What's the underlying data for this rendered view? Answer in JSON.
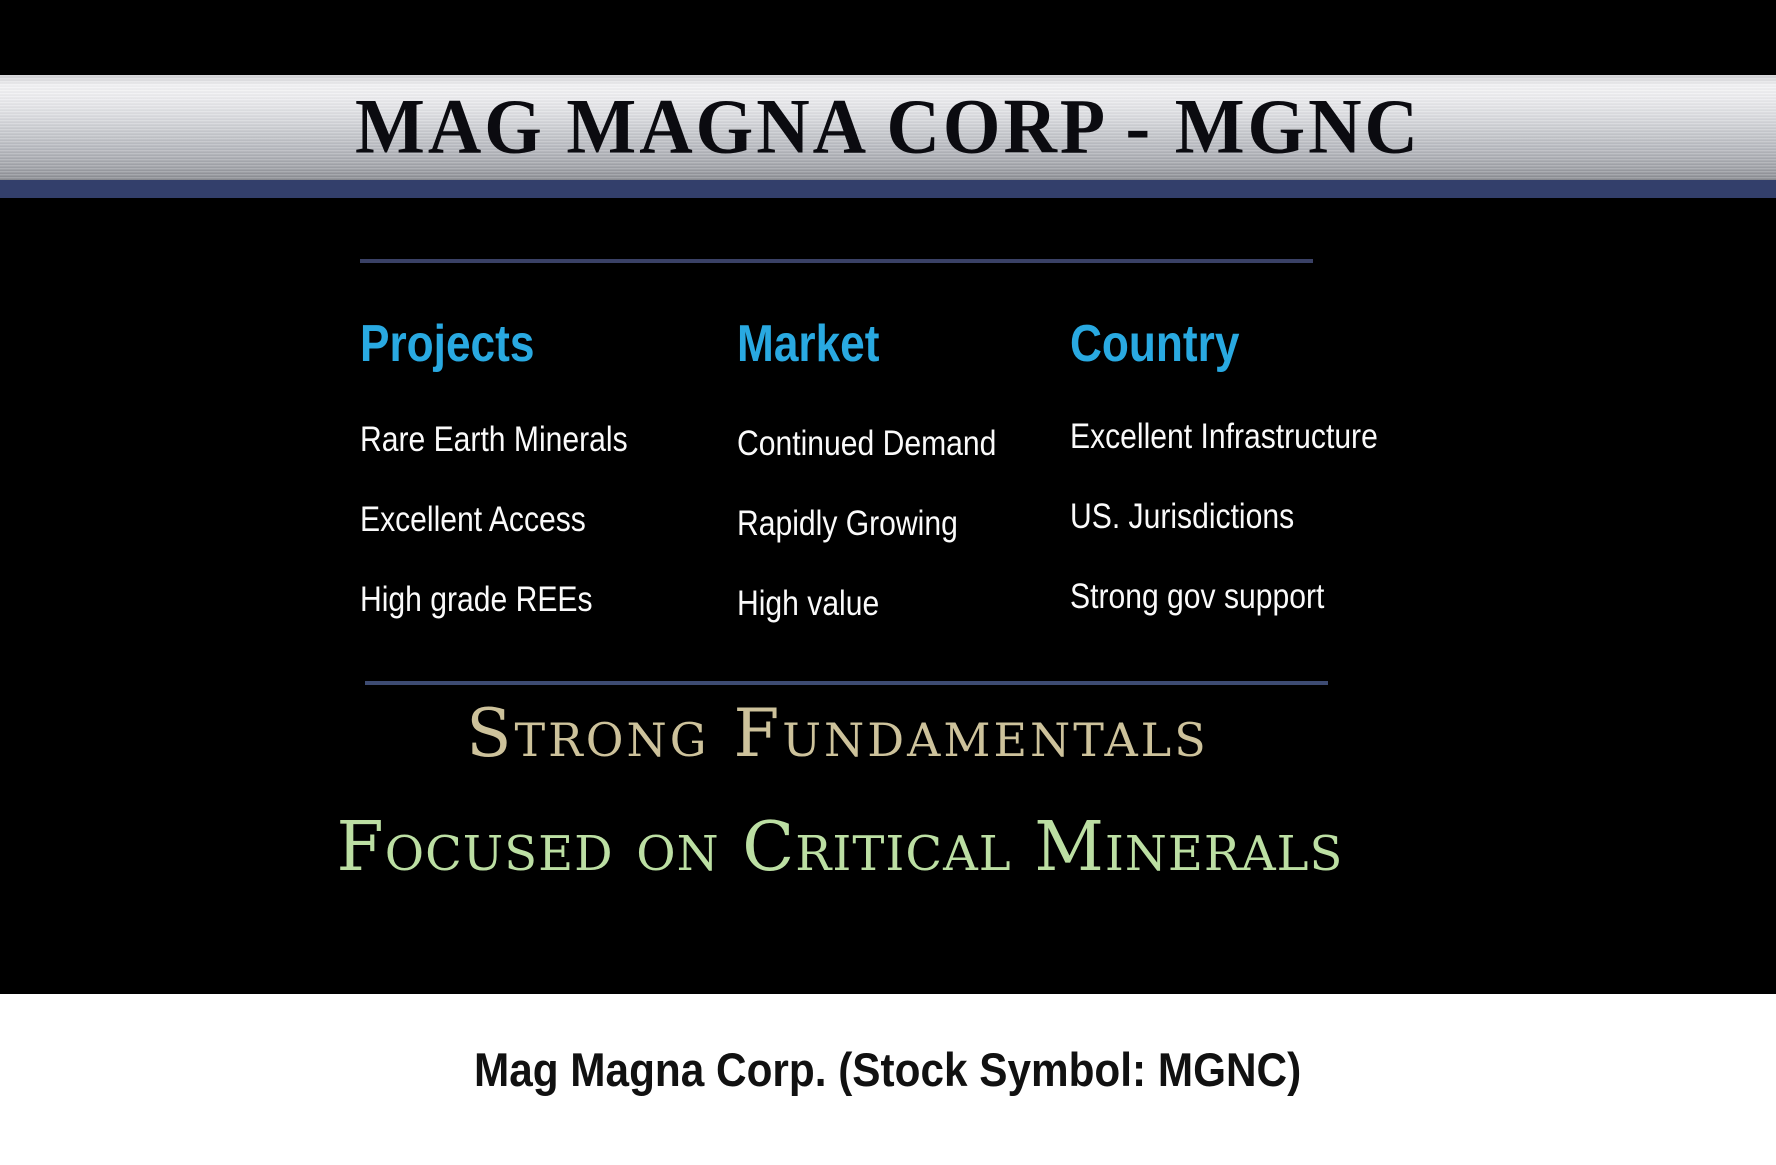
{
  "banner": {
    "title": "MAG MAGNA CORP - MGNC"
  },
  "columns": [
    {
      "header": "Projects",
      "items": [
        "Rare Earth Minerals",
        "Excellent Access",
        "High grade REEs"
      ]
    },
    {
      "header": "Market",
      "items": [
        "Continued Demand",
        "Rapidly Growing",
        "High value"
      ]
    },
    {
      "header": "Country",
      "items": [
        "Excellent Infrastructure",
        "US. Jurisdictions",
        "Strong gov support"
      ]
    }
  ],
  "headlines": {
    "line1": "Strong Fundamentals",
    "line2": "Focused on Critical Minerals"
  },
  "footer": {
    "text": "Mag Magna Corp. (Stock Symbol: MGNC)"
  },
  "colors": {
    "accent_blue": "#29a9e1",
    "strip_blue": "#333f6b",
    "divider_top": "#3a4166",
    "divider_bottom": "#3d4b72",
    "tan": "#cdc29b",
    "green": "#bcdfa3",
    "banner_silver": "#c9cbd0",
    "background": "#000000",
    "footer_bg": "#ffffff"
  }
}
